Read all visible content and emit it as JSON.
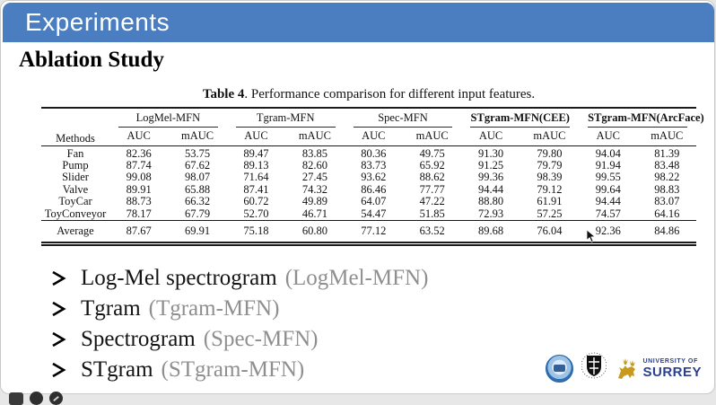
{
  "header": {
    "title": "Experiments"
  },
  "section": {
    "title": "Ablation Study"
  },
  "table": {
    "caption_label": "Table 4",
    "caption_text": ". Performance comparison for different input features.",
    "methods_header": "Methods",
    "groups": [
      {
        "label": "LogMel-MFN"
      },
      {
        "label": "Tgram-MFN"
      },
      {
        "label": "Spec-MFN"
      },
      {
        "label": "STgram-MFN(CEE)"
      },
      {
        "label": "STgram-MFN(ArcFace)"
      }
    ],
    "subheaders": [
      "AUC",
      "mAUC"
    ],
    "rows": [
      {
        "method": "Fan",
        "values": [
          "82.36",
          "53.75",
          "89.47",
          "83.85",
          "80.36",
          "49.75",
          "91.30",
          "79.80",
          "94.04",
          "81.39"
        ],
        "bold": [
          3,
          8
        ]
      },
      {
        "method": "Pump",
        "values": [
          "87.74",
          "67.62",
          "89.13",
          "82.60",
          "83.73",
          "65.92",
          "91.25",
          "79.79",
          "91.94",
          "83.48"
        ],
        "bold": [
          8,
          9
        ]
      },
      {
        "method": "Slider",
        "values": [
          "99.08",
          "98.07",
          "71.64",
          "27.45",
          "93.62",
          "88.62",
          "99.36",
          "98.39",
          "99.55",
          "98.22"
        ],
        "bold": [
          7,
          8
        ]
      },
      {
        "method": "Valve",
        "values": [
          "89.91",
          "65.88",
          "87.41",
          "74.32",
          "86.46",
          "77.77",
          "94.44",
          "79.12",
          "99.64",
          "98.83"
        ],
        "bold": [
          8,
          9
        ]
      },
      {
        "method": "ToyCar",
        "values": [
          "88.73",
          "66.32",
          "60.72",
          "49.89",
          "64.07",
          "47.22",
          "88.80",
          "61.91",
          "94.44",
          "83.07"
        ],
        "bold": [
          8,
          9
        ]
      },
      {
        "method": "ToyConveyor",
        "values": [
          "78.17",
          "67.79",
          "52.70",
          "46.71",
          "54.47",
          "51.85",
          "72.93",
          "57.25",
          "74.57",
          "64.16"
        ],
        "bold": [
          0,
          1
        ]
      }
    ],
    "average": {
      "method": "Average",
      "values": [
        "87.67",
        "69.91",
        "75.18",
        "60.80",
        "77.12",
        "63.52",
        "89.68",
        "76.04",
        "92.36",
        "84.86"
      ],
      "bold": [
        8,
        9
      ]
    }
  },
  "bullets": [
    {
      "main": "Log-Mel spectrogram",
      "paren": "(LogMel-MFN)"
    },
    {
      "main": "Tgram",
      "paren": "(Tgram-MFN)"
    },
    {
      "main": "Spectrogram",
      "paren": "(Spec-MFN)"
    },
    {
      "main": "STgram",
      "paren": "(STgram-MFN)"
    }
  ],
  "logos": {
    "surrey_top": "UNIVERSITY OF",
    "surrey_bottom": "SURREY"
  },
  "colors": {
    "title_bar_blue": "#4a7ec1",
    "paren_gray": "#8f8f8f",
    "surrey_blue": "#2b3f90",
    "stag_gold": "#c79a1e"
  }
}
